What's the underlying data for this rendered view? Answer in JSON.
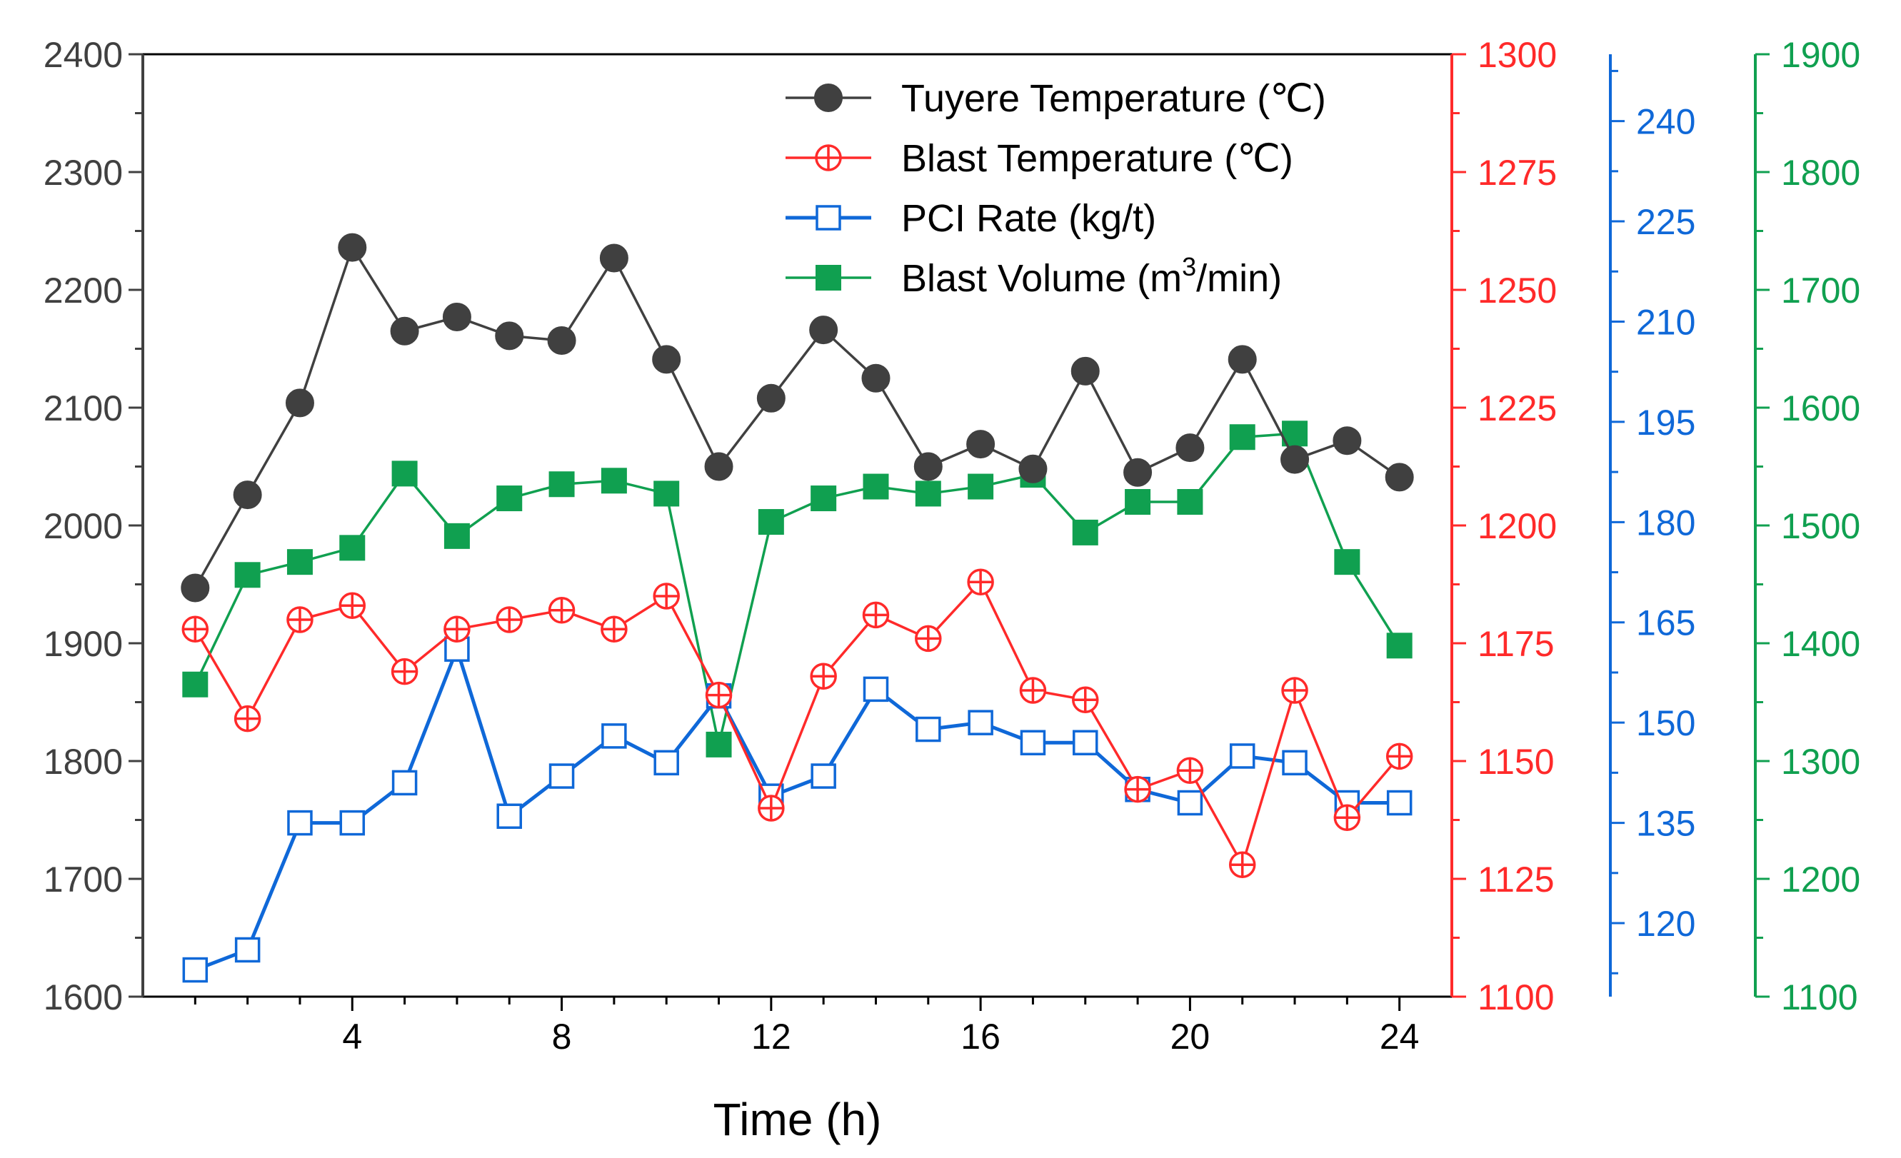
{
  "chart_data": {
    "type": "line",
    "xlabel": "Time (h)",
    "x": [
      1,
      2,
      3,
      4,
      5,
      6,
      7,
      8,
      9,
      10,
      11,
      12,
      13,
      14,
      15,
      16,
      17,
      18,
      19,
      20,
      21,
      22,
      23,
      24
    ],
    "xlim": [
      0,
      25
    ],
    "xticks": [
      4,
      8,
      12,
      16,
      20,
      24
    ],
    "xtick_labels": [
      "4",
      "8",
      "12",
      "16",
      "20",
      "24"
    ],
    "grid": false,
    "legend_position": "top-right",
    "axes": [
      {
        "id": "left",
        "side": "left",
        "color": "#404040",
        "ylim": [
          1600,
          2400
        ],
        "ticks": [
          1600,
          1700,
          1800,
          1900,
          2000,
          2100,
          2200,
          2300,
          2400
        ],
        "tick_labels": [
          "1600",
          "1700",
          "1800",
          "1900",
          "2000",
          "2100",
          "2200",
          "2300",
          "2400"
        ]
      },
      {
        "id": "red",
        "side": "right",
        "color": "#FF2A2A",
        "ylim": [
          1100,
          1300
        ],
        "ticks": [
          1100,
          1125,
          1150,
          1175,
          1200,
          1225,
          1250,
          1275,
          1300
        ],
        "tick_labels": [
          "1100",
          "1125",
          "1150",
          "1175",
          "1200",
          "1225",
          "1250",
          "1275",
          "1300"
        ]
      },
      {
        "id": "blue",
        "side": "right",
        "color": "#0F68D8",
        "ylim": [
          109,
          250
        ],
        "ticks": [
          120,
          135,
          150,
          165,
          180,
          195,
          210,
          225,
          240
        ],
        "tick_labels": [
          "120",
          "135",
          "150",
          "165",
          "180",
          "195",
          "210",
          "225",
          "240"
        ]
      },
      {
        "id": "green",
        "side": "right",
        "color": "#10A050",
        "ylim": [
          1100,
          1900
        ],
        "ticks": [
          1100,
          1200,
          1300,
          1400,
          1500,
          1600,
          1700,
          1800,
          1900
        ],
        "tick_labels": [
          "1100",
          "1200",
          "1300",
          "1400",
          "1500",
          "1600",
          "1700",
          "1800",
          "1900"
        ]
      }
    ],
    "series": [
      {
        "name": "Tuyere Temperature (℃)",
        "axis": "left",
        "color": "#404040",
        "marker": "circle-filled",
        "values": [
          1947,
          2026,
          2104,
          2236,
          2165,
          2177,
          2161,
          2157,
          2227,
          2141,
          2050,
          2108,
          2166,
          2125,
          2050,
          2069,
          2048,
          2131,
          2045,
          2066,
          2141,
          2056,
          2072,
          2041
        ]
      },
      {
        "name": "Blast Temperature (℃)",
        "axis": "red",
        "color": "#FF2A2A",
        "marker": "circle-cross",
        "values": [
          1178,
          1159,
          1180,
          1183,
          1169,
          1178,
          1180,
          1182,
          1178,
          1185,
          1164,
          1140,
          1168,
          1181,
          1176,
          1188,
          1165,
          1163,
          1144,
          1148,
          1128,
          1165,
          1138,
          1151
        ]
      },
      {
        "name": "PCI Rate (kg/t)",
        "axis": "blue",
        "color": "#0F68D8",
        "marker": "square-open",
        "values": [
          113,
          116,
          135,
          135,
          141,
          161,
          136,
          142,
          148,
          144,
          154,
          139,
          142,
          155,
          149,
          150,
          147,
          147,
          140,
          138,
          145,
          144,
          138,
          138
        ]
      },
      {
        "name": "Blast Volume (m³/min)",
        "axis": "green",
        "color": "#10A050",
        "marker": "square-filled",
        "values": [
          1365,
          1458,
          1469,
          1481,
          1544,
          1491,
          1523,
          1535,
          1538,
          1527,
          1314,
          1503,
          1523,
          1533,
          1527,
          1533,
          1543,
          1494,
          1520,
          1520,
          1575,
          1578,
          1469,
          1398
        ]
      }
    ],
    "legend": [
      {
        "label": "Tuyere Temperature (℃)"
      },
      {
        "label": "Blast Temperature (℃)"
      },
      {
        "label": "PCI Rate (kg/t)"
      },
      {
        "label_prefix": "Blast Volume (m",
        "label_sup": "3",
        "label_suffix": "/min)"
      }
    ]
  }
}
